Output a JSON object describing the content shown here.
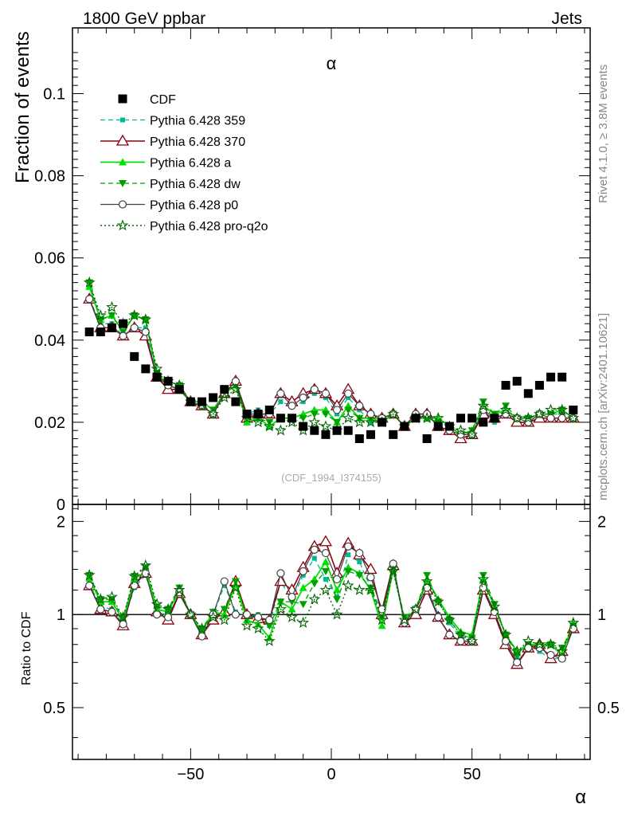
{
  "header": {
    "left": "1800 GeV ppbar",
    "right": "Jets"
  },
  "side_texts": {
    "rivet": "Rivet 4.1.0, ≥ 3.8M events",
    "mcplots": "mcplots.cern.ch [arXiv:2401.10621]"
  },
  "watermark": "(CDF_1994_I374155)",
  "colors": {
    "cdf": "#000000",
    "p359": "#00b894",
    "p370": "#8b0010",
    "pa": "#00e000",
    "pdw": "#00a000",
    "pp0": "#404040",
    "pq2o": "#006600"
  },
  "chart_data": [
    {
      "type": "scatter",
      "title": "α",
      "xlabel": "α",
      "ylabel": "Fraction of events",
      "xlim": [
        -92,
        92
      ],
      "ylim": [
        0,
        0.116
      ],
      "yticks": [
        {
          "v": 0,
          "l": "0"
        },
        {
          "v": 0.02,
          "l": "0.02"
        },
        {
          "v": 0.04,
          "l": "0.04"
        },
        {
          "v": 0.06,
          "l": "0.06"
        },
        {
          "v": 0.08,
          "l": "0.08"
        },
        {
          "v": 0.1,
          "l": "0.1"
        }
      ],
      "x": [
        -86,
        -82,
        -78,
        -74,
        -70,
        -66,
        -62,
        -58,
        -54,
        -50,
        -46,
        -42,
        -38,
        -34,
        -30,
        -26,
        -22,
        -18,
        -14,
        -10,
        -6,
        -2,
        2,
        6,
        10,
        14,
        18,
        22,
        26,
        30,
        34,
        38,
        42,
        46,
        50,
        54,
        58,
        62,
        66,
        70,
        74,
        78,
        82,
        86
      ],
      "series": [
        {
          "name": "CDF",
          "key": "cdf",
          "values": [
            0.042,
            0.042,
            0.043,
            0.044,
            0.036,
            0.033,
            0.031,
            0.03,
            0.028,
            0.025,
            0.025,
            0.026,
            0.028,
            0.025,
            0.022,
            0.022,
            0.023,
            0.021,
            0.021,
            0.019,
            0.018,
            0.017,
            0.018,
            0.018,
            0.016,
            0.017,
            0.02,
            0.017,
            0.019,
            0.021,
            0.016,
            0.019,
            0.019,
            0.021,
            0.021,
            0.02,
            0.021,
            0.029,
            0.03,
            0.027,
            0.029,
            0.031,
            0.031,
            0.023
          ]
        },
        {
          "name": "Pythia 6.428 359",
          "key": "p359",
          "values": [
            0.05,
            0.044,
            0.044,
            0.041,
            0.043,
            0.043,
            0.031,
            0.029,
            0.028,
            0.025,
            0.024,
            0.022,
            0.027,
            0.03,
            0.022,
            0.023,
            0.022,
            0.025,
            0.024,
            0.025,
            0.027,
            0.026,
            0.022,
            0.026,
            0.023,
            0.02,
            0.021,
            0.022,
            0.019,
            0.021,
            0.022,
            0.019,
            0.018,
            0.016,
            0.017,
            0.023,
            0.02,
            0.022,
            0.02,
            0.02,
            0.022,
            0.022,
            0.022,
            0.021
          ]
        },
        {
          "name": "Pythia 6.428 370",
          "key": "p370",
          "values": [
            0.05,
            0.043,
            0.043,
            0.041,
            0.043,
            0.041,
            0.031,
            0.028,
            0.028,
            0.025,
            0.024,
            0.022,
            0.027,
            0.03,
            0.021,
            0.022,
            0.022,
            0.027,
            0.025,
            0.027,
            0.028,
            0.027,
            0.024,
            0.028,
            0.024,
            0.022,
            0.021,
            0.022,
            0.019,
            0.022,
            0.022,
            0.019,
            0.018,
            0.016,
            0.017,
            0.022,
            0.021,
            0.022,
            0.02,
            0.02,
            0.021,
            0.021,
            0.021,
            0.021
          ]
        },
        {
          "name": "Pythia 6.428 a",
          "key": "pa",
          "values": [
            0.053,
            0.045,
            0.046,
            0.042,
            0.046,
            0.045,
            0.032,
            0.029,
            0.028,
            0.025,
            0.025,
            0.023,
            0.027,
            0.029,
            0.02,
            0.021,
            0.019,
            0.021,
            0.021,
            0.022,
            0.023,
            0.023,
            0.02,
            0.024,
            0.021,
            0.021,
            0.02,
            0.022,
            0.019,
            0.021,
            0.021,
            0.021,
            0.019,
            0.017,
            0.018,
            0.024,
            0.022,
            0.023,
            0.021,
            0.021,
            0.022,
            0.022,
            0.023,
            0.021
          ]
        },
        {
          "name": "Pythia 6.428 dw",
          "key": "pdw",
          "values": [
            0.054,
            0.045,
            0.046,
            0.042,
            0.046,
            0.045,
            0.032,
            0.03,
            0.029,
            0.025,
            0.025,
            0.023,
            0.027,
            0.029,
            0.021,
            0.021,
            0.02,
            0.021,
            0.021,
            0.021,
            0.022,
            0.022,
            0.02,
            0.023,
            0.021,
            0.021,
            0.021,
            0.022,
            0.019,
            0.021,
            0.021,
            0.02,
            0.019,
            0.017,
            0.018,
            0.025,
            0.022,
            0.024,
            0.021,
            0.021,
            0.022,
            0.022,
            0.023,
            0.021
          ]
        },
        {
          "name": "Pythia 6.428 p0",
          "key": "pp0",
          "values": [
            0.05,
            0.043,
            0.043,
            0.041,
            0.043,
            0.042,
            0.031,
            0.029,
            0.028,
            0.025,
            0.024,
            0.022,
            0.027,
            0.03,
            0.022,
            0.022,
            0.022,
            0.027,
            0.024,
            0.026,
            0.028,
            0.027,
            0.023,
            0.027,
            0.024,
            0.022,
            0.021,
            0.022,
            0.019,
            0.022,
            0.022,
            0.019,
            0.018,
            0.017,
            0.017,
            0.023,
            0.021,
            0.022,
            0.021,
            0.02,
            0.022,
            0.021,
            0.021,
            0.021
          ]
        },
        {
          "name": "Pythia 6.428 pro-q2o",
          "key": "pq2o",
          "values": [
            0.054,
            0.046,
            0.048,
            0.044,
            0.046,
            0.045,
            0.033,
            0.03,
            0.029,
            0.025,
            0.024,
            0.022,
            0.026,
            0.028,
            0.021,
            0.02,
            0.019,
            0.018,
            0.02,
            0.018,
            0.02,
            0.019,
            0.018,
            0.021,
            0.02,
            0.02,
            0.02,
            0.022,
            0.019,
            0.021,
            0.021,
            0.021,
            0.019,
            0.018,
            0.017,
            0.024,
            0.021,
            0.023,
            0.021,
            0.021,
            0.022,
            0.023,
            0.023,
            0.021
          ]
        }
      ]
    },
    {
      "type": "line",
      "ylabel": "Ratio to CDF",
      "xlabel": "α",
      "xlim": [
        -92,
        92
      ],
      "ylim": [
        0.34,
        2.27
      ],
      "reference_line": 1,
      "yticks": [
        {
          "v": 0.5,
          "l": "0.5"
        },
        {
          "v": 1,
          "l": "1"
        },
        {
          "v": 2,
          "l": "2"
        }
      ],
      "xticks": [
        {
          "v": -50,
          "l": "−50"
        },
        {
          "v": 0,
          "l": "0"
        },
        {
          "v": 50,
          "l": "50"
        }
      ],
      "x": [
        -86,
        -82,
        -78,
        -74,
        -70,
        -66,
        -62,
        -58,
        -54,
        -50,
        -46,
        -42,
        -38,
        -34,
        -30,
        -26,
        -22,
        -18,
        -14,
        -10,
        -6,
        -2,
        2,
        6,
        10,
        14,
        18,
        22,
        26,
        30,
        34,
        38,
        42,
        46,
        50,
        54,
        58,
        62,
        66,
        70,
        74,
        78,
        82,
        86
      ],
      "series": [
        {
          "name": "Pythia 6.428 359",
          "key": "p359",
          "values": [
            1.26,
            1.06,
            1.04,
            0.94,
            1.22,
            1.34,
            1.04,
            0.98,
            1.17,
            1.0,
            0.88,
            1.0,
            1.24,
            1.02,
            0.98,
            1.0,
            0.92,
            1.28,
            1.12,
            1.34,
            1.52,
            1.3,
            1.14,
            1.56,
            1.48,
            1.22,
            1.02,
            1.42,
            0.94,
            1.04,
            1.24,
            1.0,
            0.94,
            0.84,
            0.84,
            1.22,
            1.02,
            0.8,
            0.72,
            0.8,
            0.76,
            0.72,
            0.72,
            0.92
          ]
        },
        {
          "name": "Pythia 6.428 370",
          "key": "p370",
          "values": [
            1.24,
            1.04,
            1.02,
            0.92,
            1.26,
            1.36,
            1.02,
            0.96,
            1.17,
            1.0,
            0.86,
            0.96,
            1.02,
            1.28,
            1.0,
            0.97,
            0.96,
            1.28,
            1.2,
            1.42,
            1.66,
            1.72,
            1.36,
            1.7,
            1.56,
            1.4,
            1.0,
            1.44,
            0.94,
            1.0,
            1.2,
            0.98,
            0.86,
            0.82,
            0.82,
            1.2,
            1.0,
            0.8,
            0.69,
            0.78,
            0.8,
            0.72,
            0.76,
            0.9
          ]
        },
        {
          "name": "Pythia 6.428 a",
          "key": "pa",
          "values": [
            1.31,
            1.1,
            1.1,
            0.96,
            1.3,
            1.38,
            1.04,
            1.02,
            1.2,
            1.0,
            0.88,
            1.02,
            1.0,
            1.25,
            0.96,
            0.93,
            0.84,
            1.1,
            1.04,
            1.22,
            1.3,
            1.48,
            1.2,
            1.42,
            1.36,
            1.2,
            0.92,
            1.4,
            0.96,
            1.04,
            1.3,
            1.12,
            0.98,
            0.88,
            0.86,
            1.3,
            1.06,
            0.86,
            0.76,
            0.8,
            0.8,
            0.8,
            0.74,
            0.94
          ]
        },
        {
          "name": "Pythia 6.428 dw",
          "key": "pdw",
          "values": [
            1.34,
            1.12,
            1.12,
            0.97,
            1.33,
            1.42,
            1.06,
            1.04,
            1.22,
            1.0,
            0.9,
            1.02,
            1.04,
            1.28,
            0.98,
            0.98,
            0.92,
            1.1,
            1.1,
            1.08,
            1.26,
            1.38,
            1.12,
            1.38,
            1.34,
            1.22,
            0.98,
            1.4,
            0.98,
            1.04,
            1.34,
            1.1,
            0.96,
            0.86,
            0.84,
            1.34,
            1.08,
            0.86,
            0.74,
            0.8,
            0.78,
            0.8,
            0.78,
            0.92
          ]
        },
        {
          "name": "Pythia 6.428 p0",
          "key": "pp0",
          "values": [
            1.24,
            1.04,
            1.02,
            0.93,
            1.24,
            1.36,
            1.0,
            0.98,
            1.18,
            1.0,
            0.85,
            1.0,
            1.28,
            1.0,
            1.0,
            0.98,
            0.96,
            1.36,
            1.14,
            1.38,
            1.62,
            1.58,
            1.3,
            1.66,
            1.58,
            1.32,
            1.04,
            1.46,
            0.94,
            1.04,
            1.22,
            0.98,
            0.86,
            0.82,
            0.82,
            1.22,
            1.02,
            0.82,
            0.7,
            0.78,
            0.78,
            0.74,
            0.72,
            0.9
          ]
        },
        {
          "name": "Pythia 6.428 pro-q2o",
          "key": "pq2o",
          "values": [
            1.34,
            1.12,
            1.14,
            0.98,
            1.33,
            1.44,
            1.08,
            1.04,
            1.2,
            1.0,
            0.9,
            0.98,
            0.96,
            1.22,
            0.92,
            0.9,
            0.82,
            1.04,
            0.98,
            0.94,
            1.12,
            1.2,
            1.0,
            1.24,
            1.2,
            1.2,
            0.96,
            1.38,
            0.96,
            1.04,
            1.28,
            1.1,
            0.96,
            0.86,
            0.82,
            1.3,
            1.06,
            0.86,
            0.76,
            0.82,
            0.8,
            0.8,
            0.76,
            0.94
          ]
        }
      ]
    }
  ]
}
